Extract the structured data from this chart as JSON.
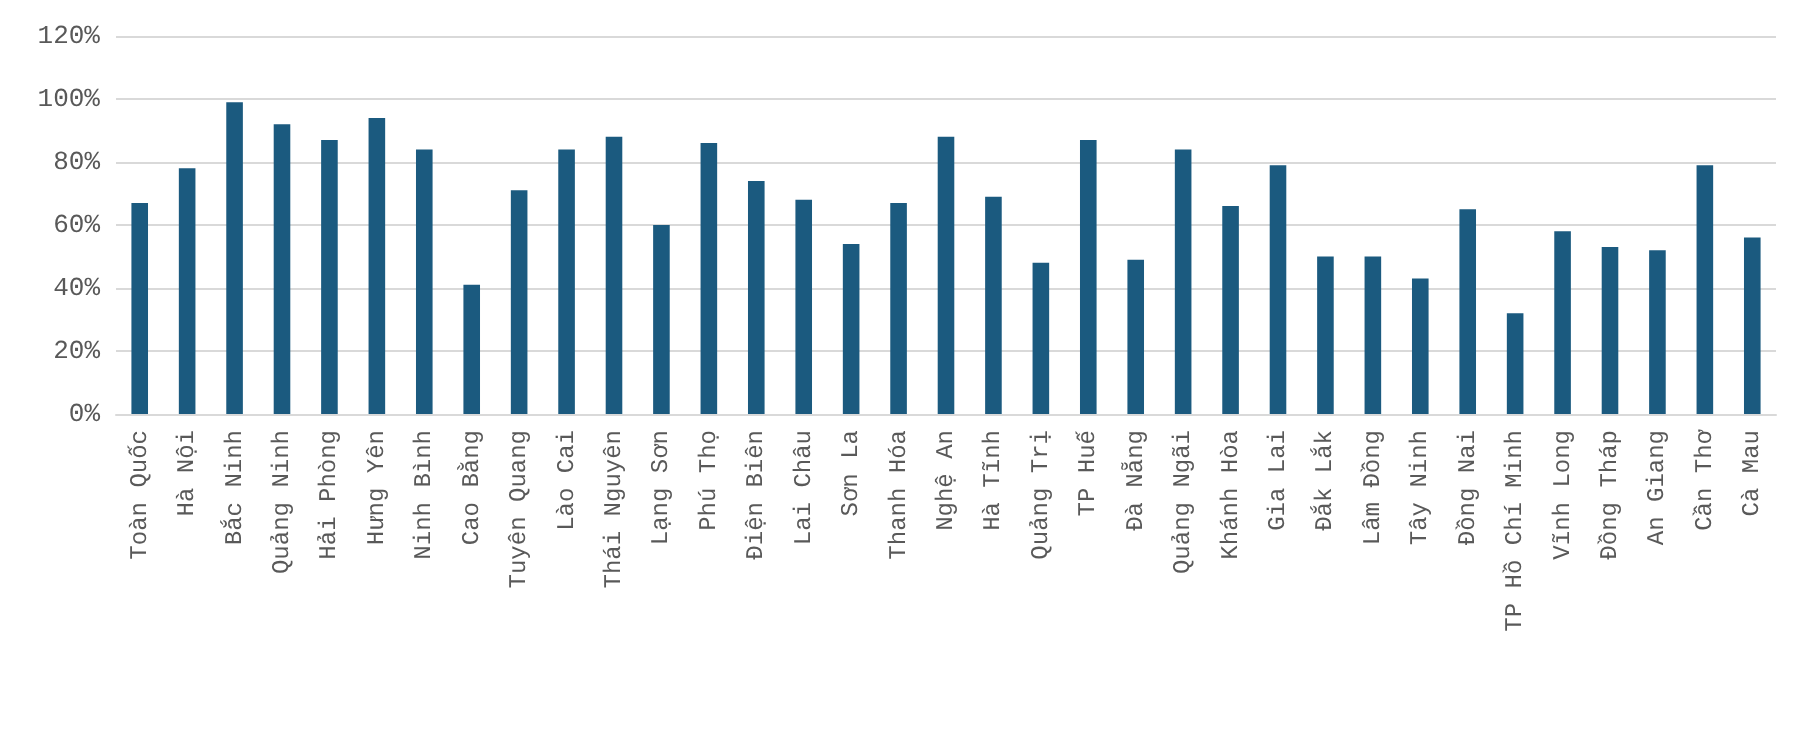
{
  "chart_data": {
    "type": "bar",
    "categories": [
      "Toàn Quốc",
      "Hà Nội",
      "Bắc Ninh",
      "Quảng Ninh",
      "Hải Phòng",
      "Hưng Yên",
      "Ninh Bình",
      "Cao Bằng",
      "Tuyên Quang",
      "Lào Cai",
      "Thái Nguyên",
      "Lạng Sơn",
      "Phú Thọ",
      "Điện Biên",
      "Lai Châu",
      "Sơn La",
      "Thanh Hóa",
      "Nghệ An",
      "Hà Tĩnh",
      "Quảng Trị",
      "TP Huế",
      "Đà Nẵng",
      "Quảng Ngãi",
      "Khánh Hòa",
      "Gia Lai",
      "Đắk Lắk",
      "Lâm Đồng",
      "Tây Ninh",
      "Đồng Nai",
      "TP Hồ Chí Minh",
      "Vĩnh Long",
      "Đồng Tháp",
      "An Giang",
      "Cần Thơ",
      "Cà Mau"
    ],
    "values": [
      67,
      78,
      99,
      92,
      87,
      94,
      84,
      41,
      71,
      84,
      88,
      60,
      86,
      74,
      68,
      54,
      67,
      88,
      69,
      48,
      87,
      49,
      84,
      66,
      79,
      50,
      50,
      43,
      65,
      32,
      58,
      53,
      52,
      79,
      56
    ],
    "color": "#1b5a7f",
    "ylim": [
      0,
      120
    ],
    "yticks": [
      {
        "value": 0,
        "label": "0%"
      },
      {
        "value": 20,
        "label": "20%"
      },
      {
        "value": 40,
        "label": "40%"
      },
      {
        "value": 60,
        "label": "60%"
      },
      {
        "value": 80,
        "label": "80%"
      },
      {
        "value": 100,
        "label": "100%"
      },
      {
        "value": 120,
        "label": "120%"
      }
    ],
    "grid": "y"
  }
}
